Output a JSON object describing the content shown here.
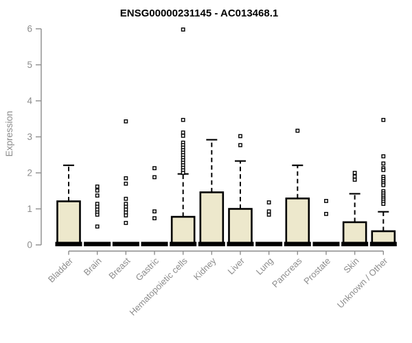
{
  "title": "ENSG00000231145 - AC013468.1",
  "colors": {
    "background": "#ffffff",
    "box_fill": "#ede8cc",
    "box_stroke": "#000000",
    "median": "#000000",
    "outlier_fill": "#ffffff",
    "axis": "#8c8c8c",
    "tick_text": "#8c8c8c",
    "title_text": "#000000"
  },
  "chart_data": {
    "type": "box",
    "title": "ENSG00000231145 - AC013468.1",
    "xlabel": "",
    "ylabel": "Expression",
    "ylim": [
      0,
      6
    ],
    "yticks": [
      0,
      1,
      2,
      3,
      4,
      5,
      6
    ],
    "grid": false,
    "legend": false,
    "categories": [
      "Bladder",
      "Brain",
      "Breast",
      "Gastric",
      "Hematopoietic cells",
      "Kidney",
      "Liver",
      "Lung",
      "Pancreas",
      "Prostate",
      "Skin",
      "Unknown / Other"
    ],
    "series": [
      {
        "name": "Bladder",
        "q1": 0,
        "median": 0,
        "q3": 1.21,
        "whisker_low": 0,
        "whisker_high": 2.21,
        "outliers": []
      },
      {
        "name": "Brain",
        "q1": 0,
        "median": 0,
        "q3": 0,
        "whisker_low": 0,
        "whisker_high": 0,
        "outliers": [
          1.62,
          1.51,
          1.37,
          1.14,
          1.06,
          0.98,
          0.9,
          0.84,
          0.51
        ]
      },
      {
        "name": "Breast",
        "q1": 0,
        "median": 0,
        "q3": 0,
        "whisker_low": 0,
        "whisker_high": 0,
        "outliers": [
          3.43,
          1.85,
          1.7,
          1.28,
          1.14,
          1.06,
          0.98,
          0.9,
          0.82,
          0.61
        ]
      },
      {
        "name": "Gastric",
        "q1": 0,
        "median": 0,
        "q3": 0,
        "whisker_low": 0,
        "whisker_high": 0,
        "outliers": [
          2.13,
          1.88,
          0.93,
          0.74
        ]
      },
      {
        "name": "Hematopoietic cells",
        "q1": 0,
        "median": 0,
        "q3": 0.78,
        "whisker_low": 0,
        "whisker_high": 1.97,
        "outliers": [
          5.98,
          3.47,
          3.12,
          3.03,
          2.84,
          2.77,
          2.7,
          2.63,
          2.56,
          2.49,
          2.42,
          2.35,
          2.28,
          2.21,
          2.14,
          2.07,
          2.0
        ]
      },
      {
        "name": "Kidney",
        "q1": 0,
        "median": 0,
        "q3": 1.46,
        "whisker_low": 0,
        "whisker_high": 2.92,
        "outliers": []
      },
      {
        "name": "Liver",
        "q1": 0,
        "median": 0,
        "q3": 1.0,
        "whisker_low": 0,
        "whisker_high": 2.33,
        "outliers": [
          3.02,
          2.77
        ]
      },
      {
        "name": "Lung",
        "q1": 0,
        "median": 0,
        "q3": 0,
        "whisker_low": 0,
        "whisker_high": 0,
        "outliers": [
          1.18,
          0.93,
          0.84
        ]
      },
      {
        "name": "Pancreas",
        "q1": 0,
        "median": 0,
        "q3": 1.29,
        "whisker_low": 0,
        "whisker_high": 2.21,
        "outliers": [
          3.17
        ]
      },
      {
        "name": "Prostate",
        "q1": 0,
        "median": 0,
        "q3": 0,
        "whisker_low": 0,
        "whisker_high": 0,
        "outliers": [
          1.22,
          0.86
        ]
      },
      {
        "name": "Skin",
        "q1": 0,
        "median": 0,
        "q3": 0.63,
        "whisker_low": 0,
        "whisker_high": 1.42,
        "outliers": [
          2.0,
          1.9,
          1.81
        ]
      },
      {
        "name": "Unknown / Other",
        "q1": 0,
        "median": 0,
        "q3": 0.38,
        "whisker_low": 0,
        "whisker_high": 0.92,
        "outliers": [
          3.47,
          2.46,
          2.26,
          2.13,
          2.08,
          1.89,
          1.83,
          1.77,
          1.71,
          1.66,
          1.49,
          1.43,
          1.37,
          1.31,
          1.26,
          1.2,
          1.14
        ]
      }
    ]
  }
}
